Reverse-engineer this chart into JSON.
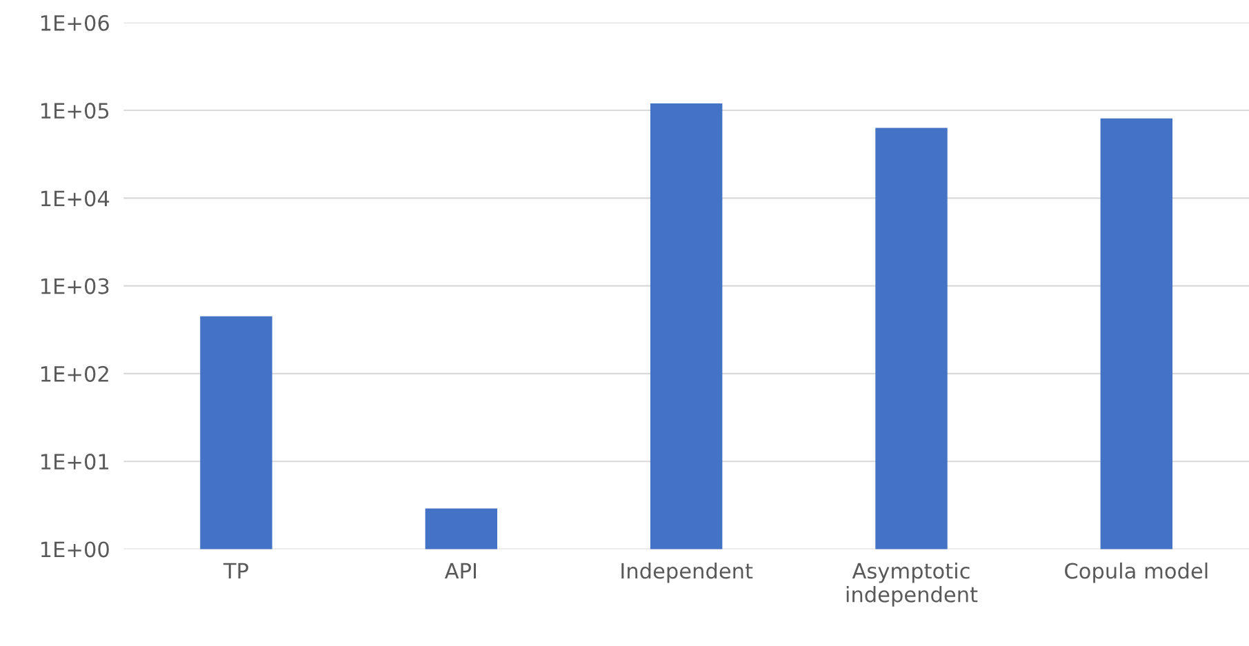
{
  "chart_data": {
    "type": "bar",
    "categories": [
      "TP",
      "API",
      "Independent",
      "Asymptotic\nindependent",
      "Copula model"
    ],
    "values": [
      450,
      2.9,
      120000,
      63000,
      81000
    ],
    "color": "#4472c4",
    "log": true,
    "ylim": [
      1,
      1000000
    ],
    "yticks": [
      {
        "value": 1,
        "label": "1E+00"
      },
      {
        "value": 10,
        "label": "1E+01"
      },
      {
        "value": 100,
        "label": "1E+02"
      },
      {
        "value": 1000,
        "label": "1E+03"
      },
      {
        "value": 10000,
        "label": "1E+04"
      },
      {
        "value": 100000,
        "label": "1E+05"
      },
      {
        "value": 1000000,
        "label": "1E+06"
      }
    ],
    "grid": "y",
    "legend": false
  }
}
